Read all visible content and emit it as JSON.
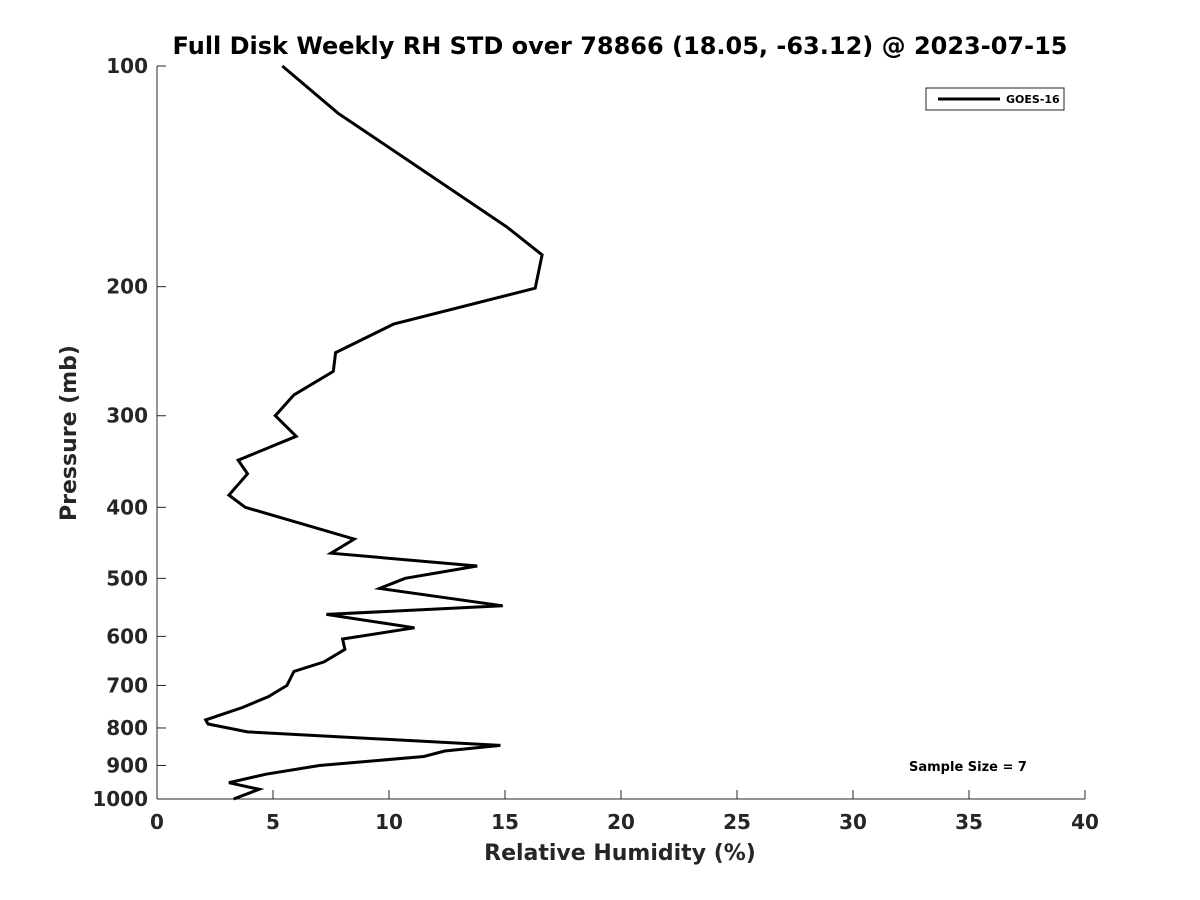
{
  "chart_data": {
    "type": "line",
    "title": "Full Disk Weekly RH STD over 78866 (18.05, -63.12) @ 2023-07-15",
    "xlabel": "Relative Humidity (%)",
    "ylabel": "Pressure (mb)",
    "xlim": [
      0,
      40
    ],
    "ylim": [
      100,
      1000
    ],
    "y_scale": "log",
    "y_reversed": true,
    "x_ticks": [
      0,
      5,
      10,
      15,
      20,
      25,
      30,
      35,
      40
    ],
    "y_ticks": [
      100,
      200,
      300,
      400,
      500,
      600,
      700,
      800,
      900,
      1000
    ],
    "grid": false,
    "legend_position": "top-right",
    "annotation": "Sample Size = 7",
    "series": [
      {
        "name": "GOES-16",
        "color": "#000000",
        "x": [
          5.4,
          7.8,
          11.2,
          15.1,
          16.6,
          16.3,
          10.2,
          7.7,
          7.6,
          5.9,
          5.1,
          6.0,
          3.5,
          3.9,
          3.1,
          3.8,
          8.5,
          7.5,
          13.8,
          10.7,
          9.6,
          14.9,
          7.3,
          11.1,
          8.0,
          8.1,
          7.2,
          5.9,
          5.6,
          4.8,
          3.7,
          2.1,
          2.2,
          3.9,
          14.8,
          12.4,
          11.5,
          7.0,
          4.7,
          3.1,
          4.4,
          3.3
        ],
        "y": [
          100,
          116,
          137,
          166,
          181,
          201,
          225,
          246,
          261,
          281,
          300,
          320,
          345,
          360,
          385,
          400,
          442,
          462,
          481,
          500,
          516,
          545,
          560,
          584,
          605,
          625,
          650,
          670,
          700,
          725,
          750,
          780,
          790,
          810,
          845,
          860,
          875,
          900,
          925,
          950,
          970,
          1000
        ]
      }
    ]
  }
}
